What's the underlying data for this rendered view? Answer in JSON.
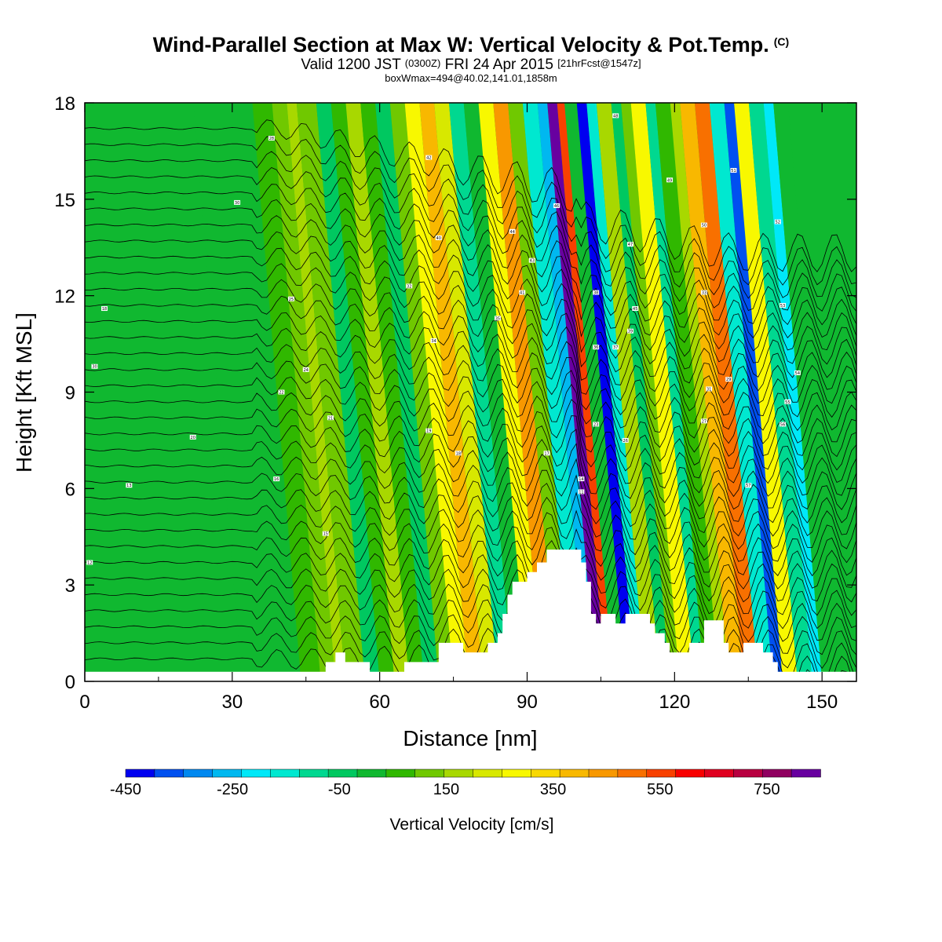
{
  "title": {
    "main": "Wind-Parallel Section at Max W: Vertical Velocity & Pot.Temp.",
    "main_suffix": "(C)",
    "valid_prefix": "Valid 1200 JST",
    "valid_utc": "(0300Z)",
    "valid_date": "FRI 24 Apr 2015",
    "valid_fcst": "[21hrFcst@1547z]",
    "box": "boxWmax=494@40.02,141.01,1858m"
  },
  "chart_data": {
    "type": "heatmap",
    "xlabel": "Distance [nm]",
    "ylabel": "Height [Kft MSL]",
    "xlim": [
      0,
      157
    ],
    "ylim": [
      0,
      18
    ],
    "xticks": [
      "0",
      "30",
      "60",
      "90",
      "120",
      "150"
    ],
    "xtick_values": [
      0,
      30,
      60,
      90,
      120,
      150
    ],
    "yticks": [
      "0",
      "3",
      "6",
      "9",
      "12",
      "15",
      "18"
    ],
    "ytick_values": [
      0,
      3,
      6,
      9,
      12,
      15,
      18
    ],
    "colorbar": {
      "label": "Vertical Velocity [cm/s]",
      "range": [
        -450,
        850
      ],
      "step": 50,
      "tick_labels": [
        "-450",
        "-250",
        "-50",
        "150",
        "350",
        "550",
        "750"
      ],
      "tick_values": [
        -450,
        -250,
        -50,
        150,
        350,
        550,
        750
      ],
      "colors": [
        "#0000f0",
        "#0050f0",
        "#0088f0",
        "#00b8f0",
        "#00e8f8",
        "#00e8d0",
        "#00d890",
        "#00c860",
        "#10b830",
        "#30b800",
        "#70c800",
        "#a8d800",
        "#d8e800",
        "#f8f800",
        "#f8d800",
        "#f8b800",
        "#f89800",
        "#f87000",
        "#f84000",
        "#f80000",
        "#e00020",
        "#b80040",
        "#900060",
        "#6800a0"
      ]
    },
    "contour_field": "Potential temperature (black lines)",
    "contour_labels": [
      {
        "x": 38,
        "y": 16.9,
        "text": "28"
      },
      {
        "x": 31,
        "y": 14.9,
        "text": "30"
      },
      {
        "x": 70,
        "y": 16.3,
        "text": "42"
      },
      {
        "x": 72,
        "y": 13.8,
        "text": "40"
      },
      {
        "x": 66,
        "y": 12.3,
        "text": "32"
      },
      {
        "x": 42,
        "y": 11.9,
        "text": "25"
      },
      {
        "x": 4,
        "y": 11.6,
        "text": "18"
      },
      {
        "x": 2,
        "y": 9.8,
        "text": "30"
      },
      {
        "x": 45,
        "y": 9.7,
        "text": "24"
      },
      {
        "x": 40,
        "y": 9.0,
        "text": "22"
      },
      {
        "x": 50,
        "y": 8.2,
        "text": "21"
      },
      {
        "x": 22,
        "y": 7.6,
        "text": "20"
      },
      {
        "x": 70,
        "y": 7.8,
        "text": "19"
      },
      {
        "x": 76,
        "y": 7.1,
        "text": "18"
      },
      {
        "x": 94,
        "y": 7.1,
        "text": "17"
      },
      {
        "x": 9,
        "y": 6.1,
        "text": "13"
      },
      {
        "x": 39,
        "y": 6.3,
        "text": "16"
      },
      {
        "x": 49,
        "y": 4.6,
        "text": "15"
      },
      {
        "x": 1,
        "y": 3.7,
        "text": "12"
      },
      {
        "x": 87,
        "y": 14.0,
        "text": "44"
      },
      {
        "x": 91,
        "y": 13.1,
        "text": "43"
      },
      {
        "x": 89,
        "y": 12.1,
        "text": "41"
      },
      {
        "x": 84,
        "y": 11.3,
        "text": "35"
      },
      {
        "x": 96,
        "y": 14.8,
        "text": "46"
      },
      {
        "x": 71,
        "y": 10.6,
        "text": "34"
      },
      {
        "x": 108,
        "y": 17.6,
        "text": "48"
      },
      {
        "x": 104,
        "y": 12.1,
        "text": "38"
      },
      {
        "x": 104,
        "y": 10.4,
        "text": "36"
      },
      {
        "x": 111,
        "y": 13.6,
        "text": "47"
      },
      {
        "x": 112,
        "y": 11.6,
        "text": "45"
      },
      {
        "x": 111,
        "y": 10.9,
        "text": "39"
      },
      {
        "x": 108,
        "y": 10.4,
        "text": "37"
      },
      {
        "x": 119,
        "y": 15.6,
        "text": "49"
      },
      {
        "x": 126,
        "y": 14.2,
        "text": "50"
      },
      {
        "x": 132,
        "y": 15.9,
        "text": "51"
      },
      {
        "x": 126,
        "y": 12.1,
        "text": "33"
      },
      {
        "x": 127,
        "y": 9.1,
        "text": "31"
      },
      {
        "x": 131,
        "y": 9.4,
        "text": "29"
      },
      {
        "x": 126,
        "y": 8.1,
        "text": "27"
      },
      {
        "x": 110,
        "y": 7.5,
        "text": "26"
      },
      {
        "x": 104,
        "y": 8.0,
        "text": "23"
      },
      {
        "x": 101,
        "y": 6.3,
        "text": "14"
      },
      {
        "x": 101,
        "y": 5.9,
        "text": "11"
      },
      {
        "x": 141,
        "y": 14.3,
        "text": "52"
      },
      {
        "x": 142,
        "y": 11.7,
        "text": "53"
      },
      {
        "x": 145,
        "y": 9.6,
        "text": "54"
      },
      {
        "x": 143,
        "y": 8.7,
        "text": "55"
      },
      {
        "x": 142,
        "y": 8.0,
        "text": "56"
      },
      {
        "x": 135,
        "y": 6.1,
        "text": "57"
      }
    ],
    "terrain_kft": [
      [
        0,
        0.3
      ],
      [
        48,
        0.3
      ],
      [
        49,
        0.6
      ],
      [
        51,
        0.9
      ],
      [
        53,
        0.6
      ],
      [
        56,
        0.6
      ],
      [
        58,
        0.3
      ],
      [
        64,
        0.3
      ],
      [
        65,
        0.6
      ],
      [
        70,
        0.6
      ],
      [
        72,
        1.2
      ],
      [
        76,
        1.2
      ],
      [
        77,
        0.9
      ],
      [
        81,
        0.9
      ],
      [
        82,
        1.2
      ],
      [
        84,
        1.5
      ],
      [
        85,
        2.1
      ],
      [
        86,
        2.7
      ],
      [
        87,
        3.1
      ],
      [
        90,
        3.4
      ],
      [
        92,
        3.7
      ],
      [
        94,
        4.1
      ],
      [
        100,
        4.1
      ],
      [
        101,
        3.7
      ],
      [
        102,
        3.1
      ],
      [
        103,
        2.1
      ],
      [
        104,
        1.8
      ],
      [
        105,
        2.1
      ],
      [
        107,
        2.1
      ],
      [
        108,
        1.8
      ],
      [
        110,
        2.1
      ],
      [
        114,
        2.1
      ],
      [
        115,
        1.8
      ],
      [
        116,
        1.5
      ],
      [
        118,
        1.2
      ],
      [
        119,
        0.9
      ],
      [
        122,
        0.9
      ],
      [
        123,
        1.2
      ],
      [
        125,
        1.2
      ],
      [
        126,
        1.9
      ],
      [
        129,
        1.9
      ],
      [
        130,
        1.2
      ],
      [
        131,
        0.9
      ],
      [
        133,
        0.9
      ],
      [
        134,
        1.2
      ],
      [
        137,
        1.2
      ],
      [
        138,
        0.9
      ],
      [
        140,
        0.6
      ],
      [
        141,
        0.3
      ],
      [
        157,
        0.3
      ]
    ],
    "cells": [
      {
        "x": [
          0,
          32
        ],
        "w": -10
      },
      {
        "x": [
          32,
          44
        ],
        "w": -50
      },
      {
        "x": [
          44,
          48
        ],
        "w": 20
      },
      {
        "x": [
          48,
          51
        ],
        "w": 60
      },
      {
        "x": [
          51,
          53
        ],
        "w": 120
      },
      {
        "x": [
          53,
          57
        ],
        "w": 60
      },
      {
        "x": [
          57,
          60
        ],
        "w": -60
      },
      {
        "x": [
          60,
          63
        ],
        "w": 40
      },
      {
        "x": [
          63,
          66
        ],
        "w": 140
      },
      {
        "x": [
          66,
          69
        ],
        "w": 40
      },
      {
        "x": [
          69,
          72
        ],
        "w": -90
      },
      {
        "x": [
          72,
          75
        ],
        "w": 60
      },
      {
        "x": [
          75,
          78
        ],
        "w": 200
      },
      {
        "x": [
          78,
          81
        ],
        "w": 300
      },
      {
        "x": [
          81,
          84
        ],
        "w": 150
      },
      {
        "x": [
          84,
          87
        ],
        "w": -150
      },
      {
        "x": [
          87,
          90
        ],
        "w": -50
      },
      {
        "x": [
          90,
          93
        ],
        "w": 200
      },
      {
        "x": [
          93,
          96
        ],
        "w": 360
      },
      {
        "x": [
          96,
          99
        ],
        "w": 60
      },
      {
        "x": [
          99,
          102
        ],
        "w": -200
      },
      {
        "x": [
          102,
          104
        ],
        "w": -300
      },
      {
        "x": [
          104,
          106
        ],
        "w": 720
      },
      {
        "x": [
          106,
          107.5
        ],
        "w": 450
      },
      {
        "x": [
          107.5,
          110
        ],
        "w": -50
      },
      {
        "x": [
          110,
          112
        ],
        "w": -420
      },
      {
        "x": [
          112,
          114
        ],
        "w": -200
      },
      {
        "x": [
          114,
          117
        ],
        "w": 140
      },
      {
        "x": [
          117,
          119
        ],
        "w": -100
      },
      {
        "x": [
          119,
          121
        ],
        "w": 60
      },
      {
        "x": [
          121,
          124
        ],
        "w": 200
      },
      {
        "x": [
          124,
          126
        ],
        "w": -150
      },
      {
        "x": [
          126,
          129
        ],
        "w": 40
      },
      {
        "x": [
          129,
          131
        ],
        "w": 120
      },
      {
        "x": [
          131,
          134
        ],
        "w": 300
      },
      {
        "x": [
          134,
          137
        ],
        "w": 400
      },
      {
        "x": [
          137,
          140
        ],
        "w": -200
      },
      {
        "x": [
          140,
          142
        ],
        "w": -380
      },
      {
        "x": [
          142,
          145
        ],
        "w": 200
      },
      {
        "x": [
          145,
          148
        ],
        "w": -150
      },
      {
        "x": [
          148,
          150
        ],
        "w": -250
      },
      {
        "x": [
          150,
          153
        ],
        "w": -50
      },
      {
        "x": [
          153,
          157
        ],
        "w": -20
      }
    ]
  }
}
